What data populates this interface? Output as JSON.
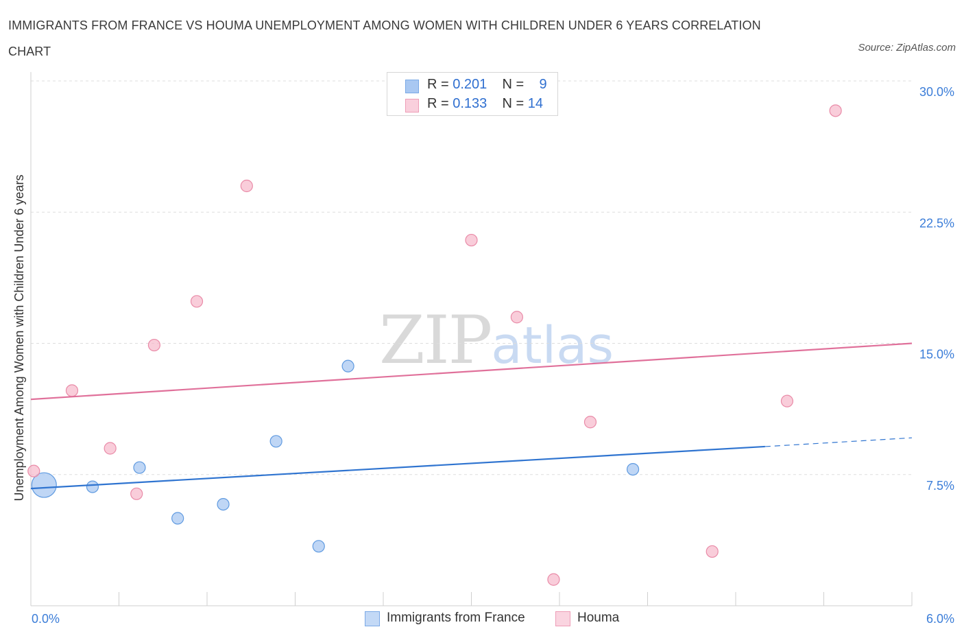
{
  "header": {
    "title": "IMMIGRANTS FROM FRANCE VS HOUMA UNEMPLOYMENT AMONG WOMEN WITH CHILDREN UNDER 6 YEARS CORRELATION CHART",
    "source": "Source: ZipAtlas.com"
  },
  "legend": {
    "rows": [
      {
        "r_label": "R =",
        "r_value": "0.201",
        "n_label": "N =",
        "n_value": "9",
        "color": "#a9c8f2"
      },
      {
        "r_label": "R =",
        "r_value": "0.133",
        "n_label": "N =",
        "n_value": "14",
        "color": "#f6b8cb"
      }
    ]
  },
  "bottom_legend": {
    "items": [
      {
        "label": "Immigrants from France",
        "color": "#a9c8f2"
      },
      {
        "label": "Houma",
        "color": "#f6b8cb"
      }
    ]
  },
  "watermark": {
    "zip": "ZIP",
    "atlas": "atlas"
  },
  "chart_data": {
    "type": "scatter",
    "title": "IMMIGRANTS FROM FRANCE VS HOUMA UNEMPLOYMENT AMONG WOMEN WITH CHILDREN UNDER 6 YEARS CORRELATION CHART",
    "xlabel": "",
    "ylabel": "Unemployment Among Women with Children Under 6 years",
    "xlim": [
      0,
      6.0
    ],
    "ylim": [
      0,
      30.0
    ],
    "x_tick_labels": [
      "0.0%",
      "6.0%"
    ],
    "y_ticks": [
      7.5,
      15.0,
      22.5,
      30.0
    ],
    "y_tick_labels": [
      "7.5%",
      "15.0%",
      "22.5%",
      "30.0%"
    ],
    "grid": "horizontal dashed",
    "series": [
      {
        "name": "Immigrants from France",
        "color": "#a9c8f2",
        "stroke": "#5f9ae0",
        "line_color": "#2f74d0",
        "points": [
          {
            "x": 0.09,
            "y": 6.9,
            "big": true
          },
          {
            "x": 0.42,
            "y": 6.8
          },
          {
            "x": 0.74,
            "y": 7.9
          },
          {
            "x": 1.0,
            "y": 5.0
          },
          {
            "x": 1.31,
            "y": 5.8
          },
          {
            "x": 1.67,
            "y": 9.4
          },
          {
            "x": 1.96,
            "y": 3.4
          },
          {
            "x": 2.16,
            "y": 13.7
          },
          {
            "x": 4.1,
            "y": 7.8
          }
        ],
        "trend": {
          "x0": 0.0,
          "y0": 6.7,
          "x1": 5.0,
          "y1": 9.1,
          "x_dash_end": 6.0,
          "y_dash_end": 9.6
        }
      },
      {
        "name": "Houma",
        "color": "#f6b8cb",
        "stroke": "#e98aa7",
        "line_color": "#e0709a",
        "points": [
          {
            "x": 0.02,
            "y": 7.7
          },
          {
            "x": 0.28,
            "y": 12.3
          },
          {
            "x": 0.54,
            "y": 9.0
          },
          {
            "x": 0.72,
            "y": 6.4
          },
          {
            "x": 0.84,
            "y": 14.9
          },
          {
            "x": 1.13,
            "y": 17.4
          },
          {
            "x": 1.47,
            "y": 24.0
          },
          {
            "x": 3.0,
            "y": 20.9
          },
          {
            "x": 3.31,
            "y": 16.5
          },
          {
            "x": 3.56,
            "y": 1.5
          },
          {
            "x": 3.81,
            "y": 10.5
          },
          {
            "x": 4.64,
            "y": 3.1
          },
          {
            "x": 5.15,
            "y": 11.7
          },
          {
            "x": 5.48,
            "y": 28.3
          }
        ],
        "trend": {
          "x0": 0.0,
          "y0": 11.8,
          "x1": 6.0,
          "y1": 15.0
        }
      }
    ]
  }
}
